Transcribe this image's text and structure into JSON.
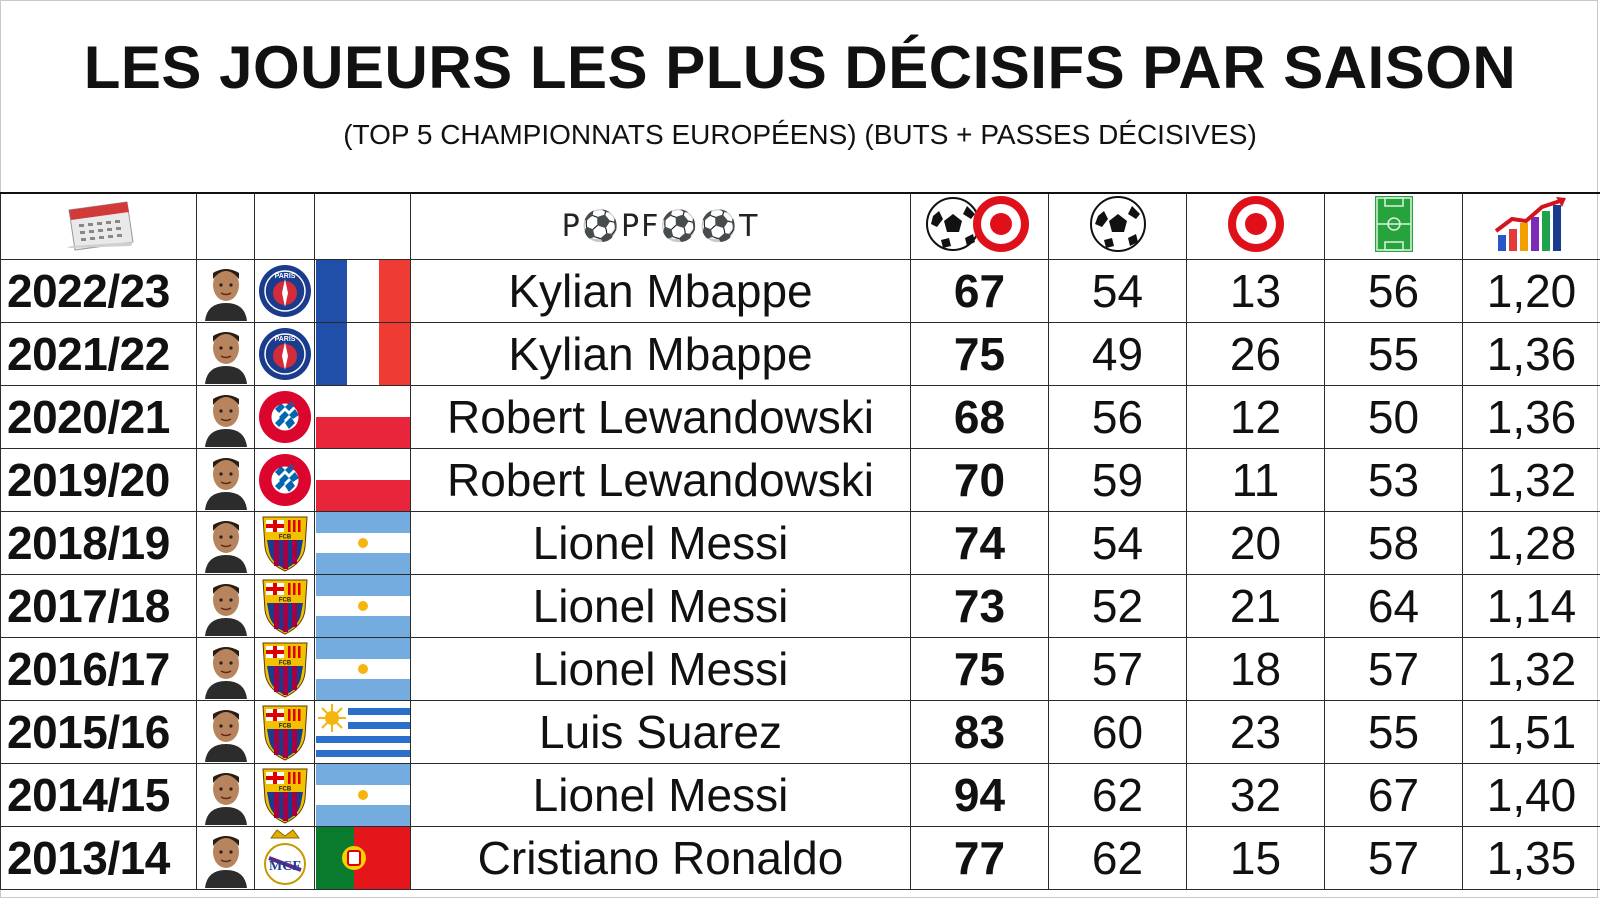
{
  "title": "LES JOUEURS LES PLUS DÉCISIFS PAR SAISON",
  "subtitle": "(TOP 5 CHAMPIONNATS EUROPÉENS) (BUTS + PASSES DÉCISIVES)",
  "header": {
    "brand": "PopFoot",
    "calendar_icon": "calendar-icon",
    "columns_icons": [
      "ball-and-target-icon",
      "ball-icon",
      "target-icon",
      "pitch-icon",
      "bar-chart-icon"
    ]
  },
  "rows": [
    {
      "season": "2022/23",
      "player": "Kylian Mbappe",
      "club": "psg",
      "flag": "france",
      "total": "67",
      "goals": "54",
      "assists": "13",
      "matches": "56",
      "ratio": "1,20"
    },
    {
      "season": "2021/22",
      "player": "Kylian Mbappe",
      "club": "psg",
      "flag": "france",
      "total": "75",
      "goals": "49",
      "assists": "26",
      "matches": "55",
      "ratio": "1,36"
    },
    {
      "season": "2020/21",
      "player": "Robert Lewandowski",
      "club": "bayern",
      "flag": "poland",
      "total": "68",
      "goals": "56",
      "assists": "12",
      "matches": "50",
      "ratio": "1,36"
    },
    {
      "season": "2019/20",
      "player": "Robert Lewandowski",
      "club": "bayern",
      "flag": "poland",
      "total": "70",
      "goals": "59",
      "assists": "11",
      "matches": "53",
      "ratio": "1,32"
    },
    {
      "season": "2018/19",
      "player": "Lionel Messi",
      "club": "barcelona",
      "flag": "argentina",
      "total": "74",
      "goals": "54",
      "assists": "20",
      "matches": "58",
      "ratio": "1,28"
    },
    {
      "season": "2017/18",
      "player": "Lionel Messi",
      "club": "barcelona",
      "flag": "argentina",
      "total": "73",
      "goals": "52",
      "assists": "21",
      "matches": "64",
      "ratio": "1,14"
    },
    {
      "season": "2016/17",
      "player": "Lionel Messi",
      "club": "barcelona",
      "flag": "argentina",
      "total": "75",
      "goals": "57",
      "assists": "18",
      "matches": "57",
      "ratio": "1,32"
    },
    {
      "season": "2015/16",
      "player": "Luis Suarez",
      "club": "barcelona",
      "flag": "uruguay",
      "total": "83",
      "goals": "60",
      "assists": "23",
      "matches": "55",
      "ratio": "1,51"
    },
    {
      "season": "2014/15",
      "player": "Lionel Messi",
      "club": "barcelona",
      "flag": "argentina",
      "total": "94",
      "goals": "62",
      "assists": "32",
      "matches": "67",
      "ratio": "1,40"
    },
    {
      "season": "2013/14",
      "player": "Cristiano Ronaldo",
      "club": "real-madrid",
      "flag": "portugal",
      "total": "77",
      "goals": "62",
      "assists": "15",
      "matches": "57",
      "ratio": "1,35"
    }
  ],
  "colors": {
    "psg_blue": "#1b3c8c",
    "psg_red": "#d22b3b",
    "bayern_red": "#dc052d",
    "bayern_blue": "#0066b2",
    "barca_blue": "#1a3c8e",
    "barca_red": "#a50044",
    "barca_yellow": "#f2c200",
    "france_blue": "#1f4fa8",
    "france_red": "#ee3b33",
    "poland_red": "#e8253b",
    "argentina_blue": "#74acdf",
    "uruguay_blue": "#2a6fc9",
    "portugal_green": "#0a7a2c",
    "portugal_red": "#e4151b",
    "pitch_green": "#27a33c",
    "target_red": "#e0101a",
    "grid": "#2b2b2b"
  }
}
